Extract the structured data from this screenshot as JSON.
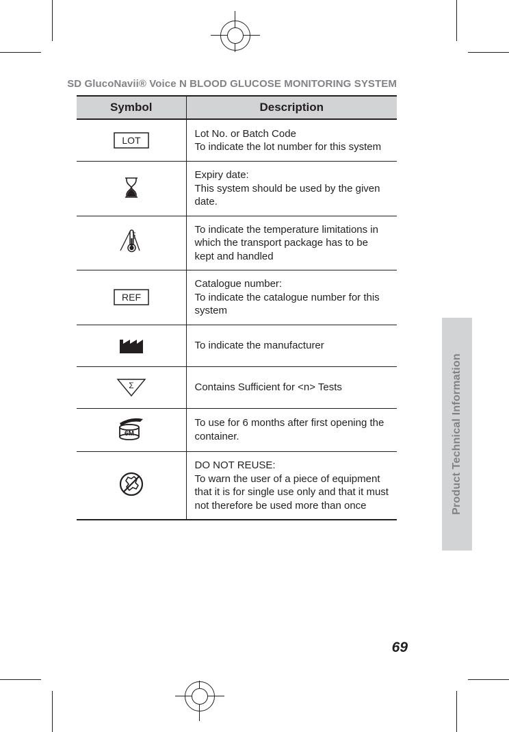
{
  "header": "SD GlucoNavii® Voice N BLOOD GLUCOSE MONITORING SYSTEM",
  "side_tab_label": "Product Technical Information",
  "page_number": "69",
  "table": {
    "col_symbol": "Symbol",
    "col_description": "Description",
    "rows": [
      {
        "icon": "lot",
        "desc": "Lot No. or Batch Code\nTo indicate the lot number for this system"
      },
      {
        "icon": "hourglass",
        "desc": "Expiry date:\nThis system should be used by the given date."
      },
      {
        "icon": "thermometer",
        "desc": "To indicate the temperature limitations in which the transport package has to be kept and handled"
      },
      {
        "icon": "ref",
        "desc": "Catalogue number:\nTo indicate the catalogue number for this system"
      },
      {
        "icon": "factory",
        "desc": "To indicate the manufacturer"
      },
      {
        "icon": "sigma",
        "desc": "Contains Sufficient for <n> Tests"
      },
      {
        "icon": "jar6m",
        "desc": "To use for 6 months after first opening the container."
      },
      {
        "icon": "no-reuse",
        "desc": "DO NOT REUSE:\nTo warn the user of a piece of equipment that it is for single use only and that it must not therefore be used more than once"
      }
    ]
  },
  "colors": {
    "text": "#231f20",
    "header_text": "#808285",
    "row_border": "#231f20",
    "th_bg": "#d1d3d4",
    "tab_bg": "#d1d3d4"
  },
  "icons": {
    "lot_label": "LOT",
    "ref_label": "REF",
    "jar_label": "6M",
    "sigma_char": "Σ"
  }
}
